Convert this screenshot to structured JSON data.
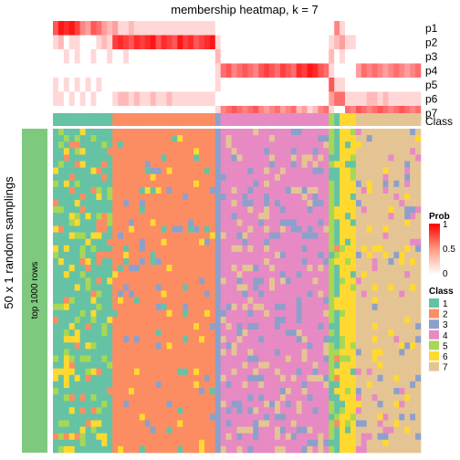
{
  "chart_data": {
    "type": "heatmap",
    "title": "membership heatmap, k = 7",
    "side_label": "50 x 1 random samplings",
    "row_strip_label": "top 1000 rows",
    "membership_rows": [
      "p1",
      "p2",
      "p3",
      "p4",
      "p5",
      "p6",
      "p7"
    ],
    "class_row_label": "Class",
    "prob_legend": {
      "title": "Prob",
      "ticks": [
        "1",
        "0.5",
        "0"
      ],
      "low": "#ffffff",
      "high": "#ff0000"
    },
    "class_legend": {
      "title": "Class",
      "items": [
        {
          "label": "1",
          "color": "#66c2a5"
        },
        {
          "label": "2",
          "color": "#fc8d62"
        },
        {
          "label": "3",
          "color": "#8da0cb"
        },
        {
          "label": "4",
          "color": "#e78ac3"
        },
        {
          "label": "5",
          "color": "#a6d854"
        },
        {
          "label": "6",
          "color": "#ffd92f"
        },
        {
          "label": "7",
          "color": "#e5c494"
        }
      ]
    },
    "column_classes": [
      1,
      1,
      1,
      1,
      1,
      1,
      1,
      1,
      1,
      1,
      1,
      2,
      2,
      2,
      2,
      2,
      2,
      2,
      2,
      2,
      2,
      2,
      2,
      2,
      2,
      2,
      2,
      2,
      2,
      2,
      3,
      4,
      4,
      4,
      4,
      4,
      4,
      4,
      4,
      4,
      4,
      4,
      4,
      4,
      4,
      4,
      4,
      4,
      4,
      4,
      4,
      5,
      1,
      6,
      6,
      6,
      7,
      7,
      7,
      7,
      7,
      7,
      7,
      7,
      7,
      7,
      7,
      7
    ],
    "membership_probs": [
      [
        0.6,
        0.9,
        0.8,
        0.9,
        0.7,
        0.4,
        0.3,
        0.6,
        0.5,
        0.3,
        0.2,
        0.3,
        0.1,
        0.1,
        0.2,
        0.1,
        0.1,
        0.1,
        0.1,
        0.1,
        0.1,
        0.1,
        0.1,
        0.1,
        0.1,
        0.1,
        0.1,
        0.1,
        0.1,
        0.1,
        0.0,
        0.0,
        0.0,
        0.0,
        0.0,
        0.0,
        0.0,
        0.0,
        0.0,
        0.0,
        0.0,
        0.0,
        0.0,
        0.0,
        0.0,
        0.0,
        0.0,
        0.0,
        0.0,
        0.0,
        0.0,
        0.0,
        0.4,
        0.1,
        0.0,
        0.0,
        0.0,
        0.0,
        0.0,
        0.0,
        0.0,
        0.0,
        0.0,
        0.0,
        0.0,
        0.0,
        0.0,
        0.0
      ],
      [
        0.1,
        0.2,
        0.0,
        0.1,
        0.1,
        0.0,
        0.0,
        0.0,
        0.1,
        0.2,
        0.1,
        0.7,
        0.8,
        0.7,
        0.6,
        0.8,
        0.7,
        0.8,
        0.9,
        0.6,
        0.8,
        0.7,
        0.6,
        0.9,
        0.7,
        0.8,
        0.6,
        0.7,
        0.8,
        0.9,
        0.1,
        0.0,
        0.0,
        0.0,
        0.0,
        0.0,
        0.0,
        0.0,
        0.0,
        0.0,
        0.0,
        0.0,
        0.0,
        0.0,
        0.0,
        0.0,
        0.0,
        0.0,
        0.0,
        0.0,
        0.0,
        0.1,
        0.2,
        0.3,
        0.1,
        0.1,
        0.0,
        0.0,
        0.0,
        0.0,
        0.0,
        0.0,
        0.0,
        0.0,
        0.0,
        0.0,
        0.0,
        0.0
      ],
      [
        0.0,
        0.0,
        0.1,
        0.0,
        0.1,
        0.0,
        0.0,
        0.1,
        0.0,
        0.0,
        0.1,
        0.0,
        0.0,
        0.1,
        0.0,
        0.0,
        0.0,
        0.0,
        0.0,
        0.0,
        0.0,
        0.0,
        0.0,
        0.0,
        0.0,
        0.0,
        0.0,
        0.0,
        0.0,
        0.0,
        0.2,
        0.0,
        0.0,
        0.0,
        0.0,
        0.0,
        0.0,
        0.0,
        0.0,
        0.0,
        0.0,
        0.0,
        0.0,
        0.0,
        0.0,
        0.0,
        0.0,
        0.0,
        0.0,
        0.0,
        0.0,
        0.2,
        0.0,
        0.1,
        0.0,
        0.0,
        0.0,
        0.0,
        0.0,
        0.0,
        0.0,
        0.0,
        0.0,
        0.0,
        0.0,
        0.0,
        0.0,
        0.0
      ],
      [
        0.0,
        0.0,
        0.0,
        0.0,
        0.0,
        0.0,
        0.0,
        0.0,
        0.0,
        0.0,
        0.0,
        0.0,
        0.0,
        0.0,
        0.0,
        0.0,
        0.0,
        0.0,
        0.0,
        0.0,
        0.0,
        0.0,
        0.0,
        0.0,
        0.0,
        0.0,
        0.0,
        0.0,
        0.0,
        0.0,
        0.1,
        0.5,
        0.6,
        0.4,
        0.5,
        0.6,
        0.5,
        0.4,
        0.6,
        0.7,
        0.6,
        0.5,
        0.7,
        0.6,
        0.5,
        0.8,
        0.7,
        0.9,
        0.8,
        0.6,
        0.5,
        0.1,
        0.0,
        0.0,
        0.0,
        0.0,
        0.3,
        0.5,
        0.4,
        0.5,
        0.4,
        0.3,
        0.4,
        0.5,
        0.4,
        0.3,
        0.4,
        0.5
      ],
      [
        0.1,
        0.0,
        0.1,
        0.0,
        0.1,
        0.0,
        0.1,
        0.0,
        0.1,
        0.0,
        0.0,
        0.0,
        0.0,
        0.0,
        0.0,
        0.0,
        0.0,
        0.0,
        0.0,
        0.0,
        0.0,
        0.0,
        0.0,
        0.0,
        0.0,
        0.0,
        0.0,
        0.0,
        0.0,
        0.0,
        0.1,
        0.0,
        0.0,
        0.0,
        0.0,
        0.0,
        0.0,
        0.0,
        0.0,
        0.0,
        0.0,
        0.0,
        0.0,
        0.0,
        0.0,
        0.0,
        0.0,
        0.0,
        0.0,
        0.0,
        0.0,
        0.6,
        0.1,
        0.1,
        0.0,
        0.0,
        0.0,
        0.0,
        0.0,
        0.0,
        0.0,
        0.0,
        0.0,
        0.0,
        0.0,
        0.0,
        0.0,
        0.0
      ],
      [
        0.1,
        0.1,
        0.0,
        0.1,
        0.0,
        0.1,
        0.0,
        0.1,
        0.0,
        0.0,
        0.0,
        0.1,
        0.2,
        0.2,
        0.1,
        0.2,
        0.1,
        0.1,
        0.2,
        0.1,
        0.1,
        0.2,
        0.1,
        0.1,
        0.1,
        0.1,
        0.1,
        0.1,
        0.1,
        0.1,
        0.0,
        0.0,
        0.0,
        0.0,
        0.0,
        0.0,
        0.0,
        0.0,
        0.0,
        0.0,
        0.0,
        0.0,
        0.0,
        0.0,
        0.0,
        0.0,
        0.0,
        0.0,
        0.0,
        0.0,
        0.0,
        0.3,
        0.5,
        0.5,
        0.1,
        0.1,
        0.1,
        0.1,
        0.2,
        0.2,
        0.1,
        0.2,
        0.1,
        0.1,
        0.1,
        0.1,
        0.1,
        0.1
      ],
      [
        0.0,
        0.0,
        0.0,
        0.0,
        0.0,
        0.0,
        0.0,
        0.0,
        0.0,
        0.0,
        0.0,
        0.0,
        0.0,
        0.0,
        0.0,
        0.0,
        0.0,
        0.0,
        0.0,
        0.0,
        0.0,
        0.0,
        0.0,
        0.0,
        0.0,
        0.0,
        0.0,
        0.0,
        0.0,
        0.0,
        0.1,
        0.4,
        0.5,
        0.6,
        0.5,
        0.4,
        0.5,
        0.6,
        0.4,
        0.3,
        0.4,
        0.5,
        0.3,
        0.4,
        0.5,
        0.2,
        0.3,
        0.1,
        0.2,
        0.4,
        0.5,
        0.1,
        0.0,
        0.0,
        0.5,
        0.4,
        0.6,
        0.5,
        0.4,
        0.5,
        0.6,
        0.5,
        0.4,
        0.5,
        0.6,
        0.5,
        0.4,
        0.5
      ]
    ],
    "sampling_rows": 50
  }
}
